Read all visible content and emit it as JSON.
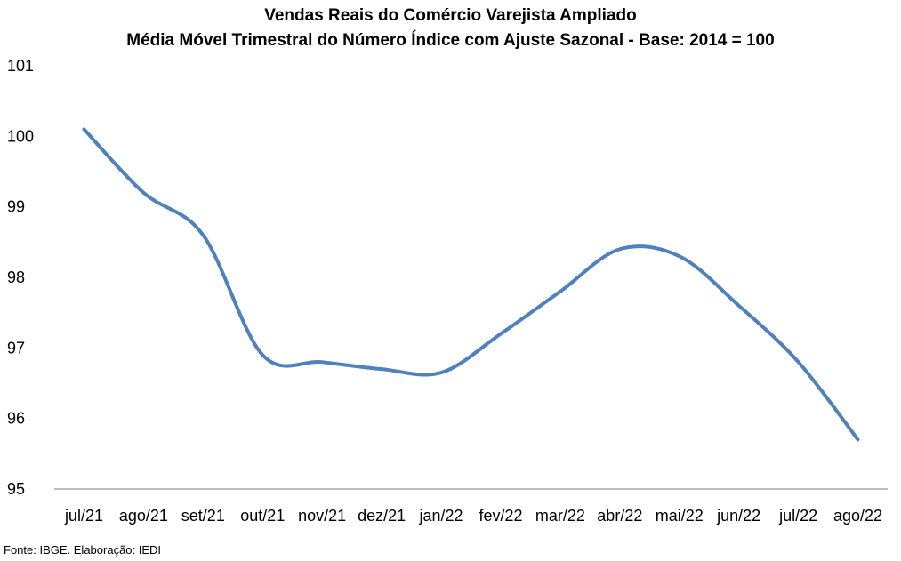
{
  "chart_data": {
    "type": "line",
    "title": "Vendas Reais do Comércio Varejista Ampliado",
    "subtitle": "Média Móvel Trimestral do Número Índice com Ajuste Sazonal - Base: 2014 = 100",
    "xlabel": "",
    "ylabel": "",
    "categories": [
      "jul/21",
      "ago/21",
      "set/21",
      "out/21",
      "nov/21",
      "dez/21",
      "jan/22",
      "fev/22",
      "mar/22",
      "abr/22",
      "mai/22",
      "jun/22",
      "jul/22",
      "ago/22"
    ],
    "yticks": [
      "95",
      "96",
      "97",
      "98",
      "99",
      "100",
      "101"
    ],
    "ylim": [
      95,
      101
    ],
    "grid": false,
    "series": [
      {
        "color": "#4F81BD",
        "values": [
          100.1,
          99.2,
          98.6,
          96.9,
          96.8,
          96.7,
          96.65,
          97.2,
          97.8,
          98.4,
          98.3,
          97.6,
          96.8,
          95.7
        ]
      }
    ]
  },
  "footer": {
    "source": "Fonte: IBGE. Elaboração: IEDI"
  }
}
